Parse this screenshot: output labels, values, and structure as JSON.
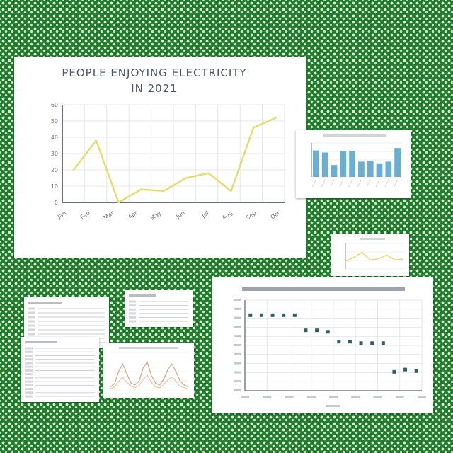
{
  "chart_data": [
    {
      "type": "line",
      "title": "PEOPLE ENJOYING ELECTRICITY",
      "subtitle": "IN 2021",
      "x": [
        "Jan",
        "Feb",
        "Mar",
        "Apr",
        "May",
        "Jun",
        "Jul",
        "Aug",
        "Sep",
        "Oct"
      ],
      "series": [
        {
          "values": [
            20,
            38,
            0,
            8,
            7,
            15,
            18,
            7,
            46,
            52
          ]
        }
      ],
      "y_ticks": [
        "0",
        "10",
        "20",
        "30",
        "40",
        "50",
        "60"
      ],
      "ylim": [
        0,
        60
      ],
      "grid": true,
      "colors": {
        "line": "#e6dc72",
        "grid": "#e5e7eb"
      }
    },
    {
      "type": "bar",
      "categories": [
        "1",
        "2",
        "3",
        "4",
        "5",
        "6",
        "7",
        "8",
        "9",
        "10"
      ],
      "values": [
        78,
        72,
        35,
        75,
        75,
        45,
        48,
        40,
        45,
        85
      ],
      "ylim": [
        0,
        100
      ],
      "grid": true,
      "colors": {
        "bar": "#6aafd2"
      }
    },
    {
      "type": "line",
      "x": [
        1,
        2,
        3,
        4,
        5,
        6,
        7,
        8
      ],
      "series": [
        {
          "values": [
            30,
            45,
            65,
            35,
            40,
            55,
            35,
            40
          ]
        }
      ],
      "ylim": [
        0,
        100
      ],
      "grid": true,
      "colors": {
        "line": "#e6dc72"
      }
    },
    {
      "type": "scatter",
      "x": [
        1,
        2,
        3,
        4,
        5,
        6,
        7,
        8,
        9,
        10,
        11,
        12,
        13,
        14,
        15,
        16
      ],
      "series": [
        {
          "values": [
            100,
            100,
            100,
            100,
            100,
            80,
            80,
            78,
            65,
            65,
            63,
            63,
            63,
            25,
            28,
            26
          ]
        }
      ],
      "ylim": [
        0,
        120
      ],
      "grid": true,
      "colors": {
        "point": "#2f5f64"
      }
    },
    {
      "type": "area",
      "x": [
        1,
        2,
        3,
        4,
        5,
        6,
        7,
        8,
        9,
        10,
        11,
        12,
        13,
        14,
        15,
        16,
        17,
        18,
        19,
        20
      ],
      "series": [
        {
          "values": [
            10,
            18,
            50,
            70,
            45,
            20,
            15,
            25,
            60,
            75,
            40,
            20,
            15,
            30,
            55,
            70,
            50,
            25,
            15,
            10
          ]
        },
        {
          "values": [
            5,
            10,
            25,
            35,
            22,
            12,
            8,
            14,
            30,
            40,
            22,
            10,
            8,
            16,
            28,
            36,
            25,
            12,
            8,
            5
          ]
        }
      ],
      "ylim": [
        0,
        100
      ],
      "grid": true,
      "colors": {
        "line1": "#d9a88a",
        "line2": "#e8c8b4"
      }
    }
  ]
}
